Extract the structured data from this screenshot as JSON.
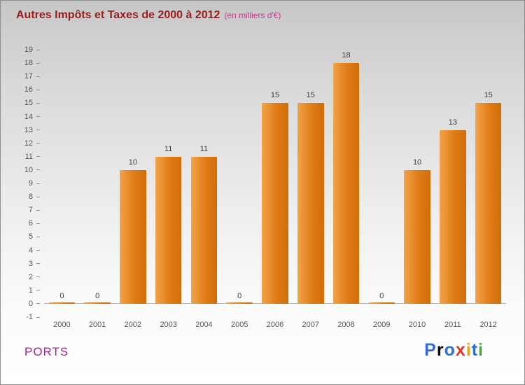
{
  "header": {
    "title": "Autres Impôts et Taxes de 2000 à 2012",
    "subtitle": "(en milliers d'€)"
  },
  "chart_data": {
    "type": "bar",
    "title": "Autres Impôts et Taxes de 2000 à 2012",
    "subtitle": "(en milliers d'€)",
    "categories": [
      "2000",
      "2001",
      "2002",
      "2003",
      "2004",
      "2005",
      "2006",
      "2007",
      "2008",
      "2009",
      "2010",
      "2011",
      "2012"
    ],
    "values": [
      0,
      0,
      10,
      11,
      11,
      0,
      15,
      15,
      18,
      0,
      10,
      13,
      15
    ],
    "xlabel": "",
    "ylabel": "",
    "ylim": [
      -1,
      19
    ],
    "ytick_step": 1,
    "grid": false,
    "legend": "none",
    "bar_value_labels": true
  },
  "footer": {
    "left_label": "PORTS",
    "logo": {
      "text": "Proxiti",
      "letters": [
        {
          "ch": "P",
          "color": "#2f6cd6"
        },
        {
          "ch": "r",
          "color": "#ef８b25"
        },
        {
          "ch": "o",
          "color": "#2f6cd6"
        },
        {
          "ch": "x",
          "color": "#d8392b"
        },
        {
          "ch": "i",
          "color": "#efa11b"
        },
        {
          "ch": "t",
          "color": "#2f6cd6"
        },
        {
          "ch": "i",
          "color": "#4ba23e"
        }
      ]
    }
  },
  "colors": {
    "title": "#9b1c1c",
    "subtitle": "#c23a93",
    "bar_light": "#f2a34a",
    "bar_mid": "#e07c15",
    "bar_dark": "#cf6d0d",
    "ports": "#aa1f8f",
    "axis_text": "#555555"
  }
}
